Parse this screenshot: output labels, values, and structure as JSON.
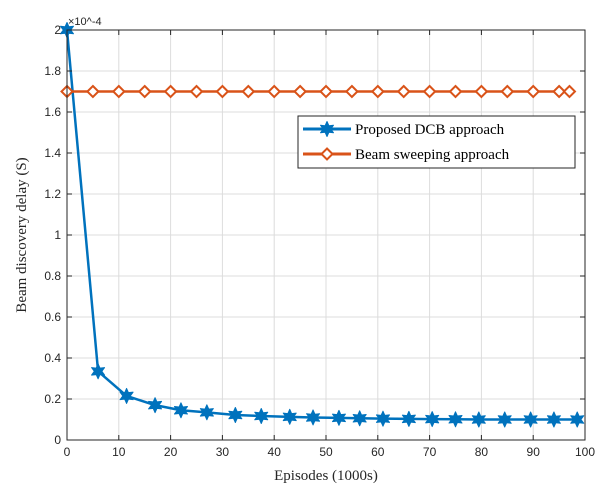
{
  "chart_data": {
    "type": "line",
    "title": "",
    "xlabel": "Episodes (1000s)",
    "ylabel": "Beam discovery delay (S)",
    "y_exponent": "×10^-4",
    "y_multiplier": 0.0001,
    "xlim": [
      0,
      100
    ],
    "ylim": [
      0,
      2
    ],
    "xticks": [
      "0",
      "10",
      "20",
      "30",
      "40",
      "50",
      "60",
      "70",
      "80",
      "90",
      "100"
    ],
    "yticks": [
      "0",
      "0.2",
      "0.4",
      "0.6",
      "0.8",
      "1",
      "1.2",
      "1.4",
      "1.6",
      "1.8",
      "2"
    ],
    "grid": true,
    "legend_position": "top-right",
    "series": [
      {
        "name": "Proposed DCB approach",
        "color": "#0072BD",
        "marker": "hexagram",
        "x": [
          0,
          6,
          11.5,
          17,
          22,
          27,
          32.5,
          37.5,
          43,
          47.5,
          52.5,
          56.5,
          61,
          66,
          70.5,
          75,
          79.5,
          84.5,
          89.5,
          94,
          98.5
        ],
        "y": [
          2.0,
          0.335,
          0.215,
          0.17,
          0.145,
          0.135,
          0.122,
          0.117,
          0.113,
          0.11,
          0.108,
          0.106,
          0.104,
          0.103,
          0.102,
          0.101,
          0.1,
          0.1,
          0.1,
          0.1,
          0.1
        ]
      },
      {
        "name": "Beam sweeping approach",
        "color": "#D95319",
        "marker": "diamond",
        "x": [
          0,
          5,
          10,
          15,
          20,
          25,
          30,
          35,
          40,
          45,
          50,
          55,
          60,
          65,
          70,
          75,
          80,
          85,
          90,
          95,
          97
        ],
        "y": [
          1.7,
          1.7,
          1.7,
          1.7,
          1.7,
          1.7,
          1.7,
          1.7,
          1.7,
          1.7,
          1.7,
          1.7,
          1.7,
          1.7,
          1.7,
          1.7,
          1.7,
          1.7,
          1.7,
          1.7,
          1.7
        ]
      }
    ]
  }
}
